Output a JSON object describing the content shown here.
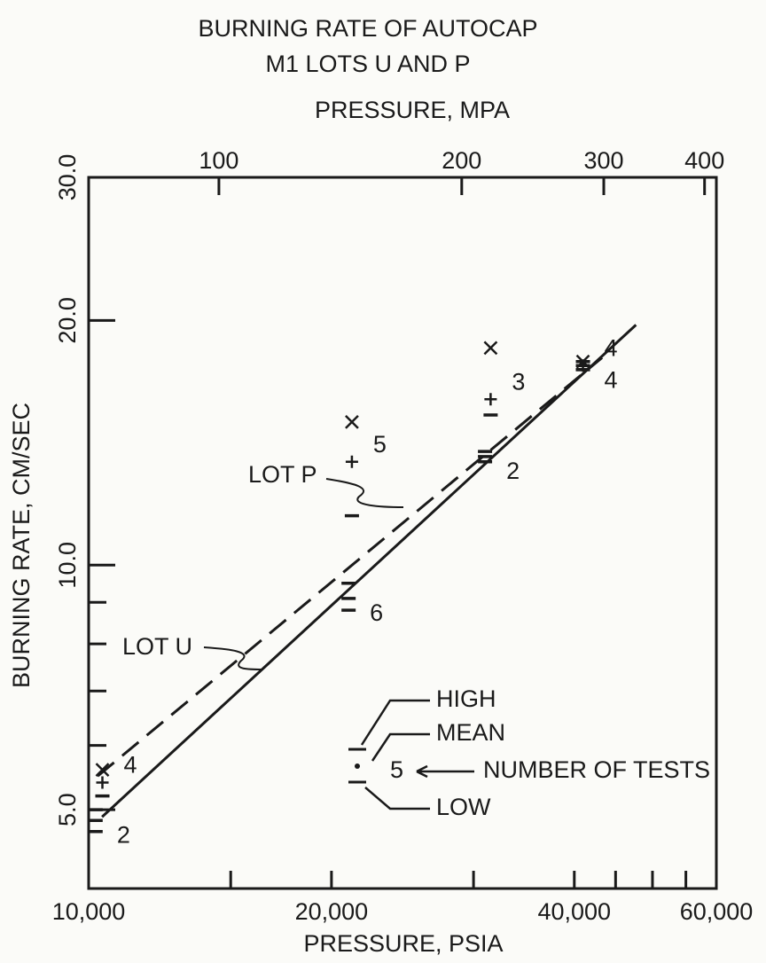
{
  "chart_data": {
    "type": "scatter",
    "title": "BURNING RATE OF AUTOCAP",
    "subtitle": "M1 LOTS U AND P",
    "x_label": "PRESSURE, PSIA",
    "x2_label": "PRESSURE, MPA",
    "y_label": "BURNING RATE, CM/SEC",
    "log_x": true,
    "log_y": true,
    "xlim": [
      10000,
      60000
    ],
    "xticks": [
      {
        "value": 10000,
        "label": "10,000"
      },
      {
        "value": 20000,
        "label": "20,000"
      },
      {
        "value": 40000,
        "label": "40,000"
      },
      {
        "value": 60000,
        "label": "60,000"
      }
    ],
    "xminorticks": [
      15000,
      30000,
      45000,
      50000,
      55000
    ],
    "x2lim": [
      68.95,
      413.7
    ],
    "x2ticks": [
      100,
      200,
      300,
      400
    ],
    "ylim": [
      4,
      30
    ],
    "yticks": [
      {
        "value": 5,
        "label": "5.0"
      },
      {
        "value": 10,
        "label": "10.0"
      },
      {
        "value": 20,
        "label": "20.0"
      },
      {
        "value": 30,
        "label": "30.0"
      }
    ],
    "yminorticks": [
      6,
      7,
      8,
      9
    ],
    "series": [
      {
        "name": "LOT P",
        "color": "#1a1a1a",
        "dashed": true,
        "markers": [
          "x",
          "+",
          "-"
        ],
        "x": [
          10400,
          21200,
          31500,
          41000
        ],
        "high": [
          5.6,
          15.0,
          18.5,
          17.8
        ],
        "mean": [
          5.4,
          13.4,
          16.0,
          17.6
        ],
        "low": [
          5.2,
          11.5,
          15.3,
          17.4
        ],
        "n": [
          4,
          5,
          3,
          4
        ],
        "line_x": [
          10260,
          43300
        ],
        "line_y": [
          5.5,
          18.0
        ]
      },
      {
        "name": "LOT U",
        "color": "#1a1a1a",
        "dashed": false,
        "markers": [
          "-",
          "-",
          "-"
        ],
        "x": [
          10200,
          21000,
          31000,
          41000
        ],
        "high": [
          5.0,
          9.5,
          13.8,
          17.8
        ],
        "mean": [
          4.85,
          9.1,
          13.6,
          17.6
        ],
        "low": [
          4.7,
          8.8,
          13.4,
          17.4
        ],
        "n": [
          2,
          6,
          2,
          4
        ],
        "line_x": [
          10390,
          47700
        ],
        "line_y": [
          4.9,
          19.75
        ]
      }
    ],
    "key": {
      "high": "HIGH",
      "mean": "MEAN",
      "low": "LOW",
      "count": "NUMBER OF TESTS",
      "example": "5"
    }
  }
}
